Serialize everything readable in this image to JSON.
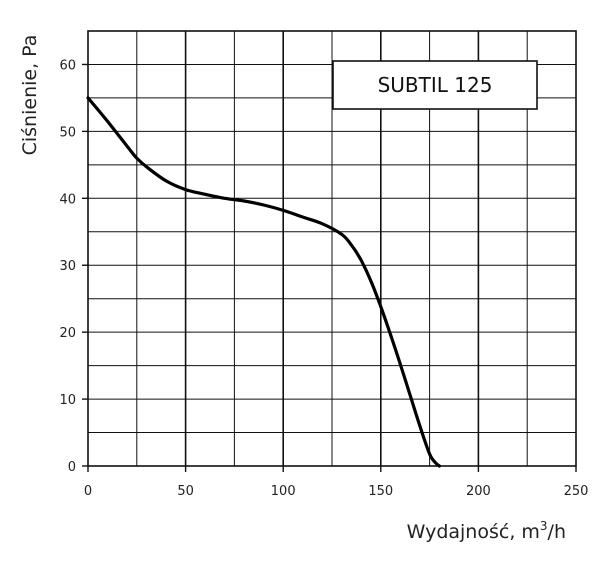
{
  "chart_data": {
    "type": "line",
    "title": "",
    "xlabel": "Wydajność, m",
    "xlabel_sup": "3",
    "xlabel_suffix": "/h",
    "ylabel": "Ciśnienie, Pa",
    "xlim": [
      0,
      250
    ],
    "ylim": [
      0,
      65
    ],
    "x_ticks": [
      0,
      50,
      100,
      150,
      200,
      250
    ],
    "x_tick_labels": [
      "0",
      "50",
      "100",
      "150",
      "200",
      "250"
    ],
    "y_ticks": [
      0,
      10,
      20,
      30,
      40,
      50,
      60
    ],
    "y_tick_labels": [
      "0",
      "10",
      "20",
      "30",
      "40",
      "50",
      "60"
    ],
    "x_grid_step": 25,
    "y_grid_step": 5,
    "grid": true,
    "legend": {
      "label": "SUBTIL 125",
      "placement": "top-right"
    },
    "series": [
      {
        "name": "SUBTIL 125",
        "x": [
          0,
          10,
          20,
          25,
          30,
          40,
          50,
          60,
          70,
          80,
          90,
          100,
          110,
          120,
          130,
          135,
          140,
          145,
          150,
          155,
          160,
          165,
          170,
          175,
          178,
          180
        ],
        "y": [
          55,
          51.5,
          47.8,
          46,
          44.7,
          42.6,
          41.3,
          40.6,
          40.0,
          39.6,
          39.0,
          38.2,
          37.2,
          36.2,
          34.6,
          33.0,
          30.7,
          27.6,
          23.8,
          19.6,
          15.2,
          10.6,
          6.0,
          1.8,
          0.5,
          0
        ]
      }
    ]
  }
}
